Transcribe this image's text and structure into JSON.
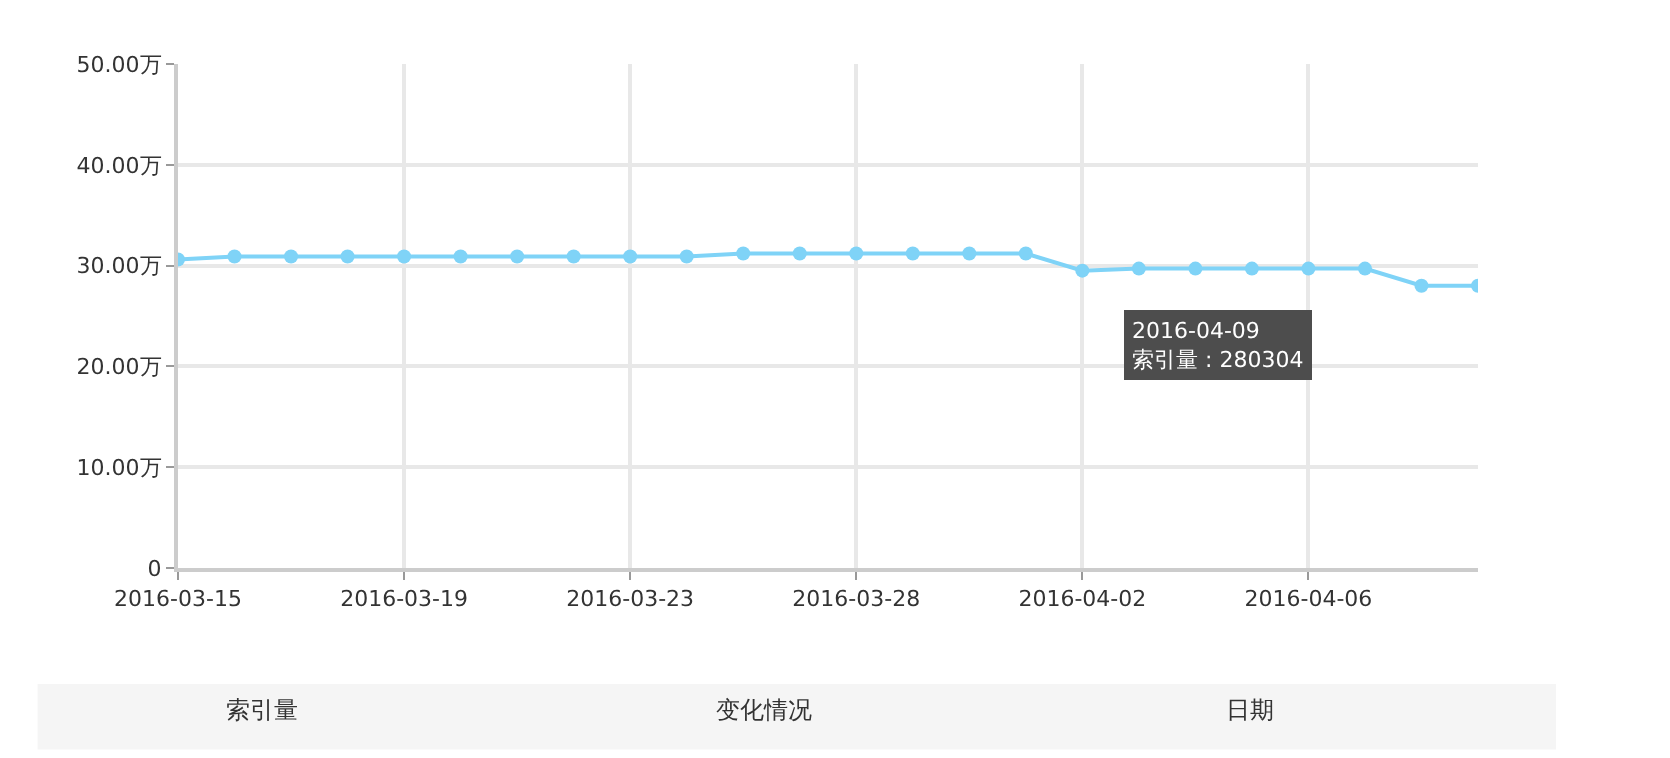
{
  "chart_data": {
    "type": "line",
    "categories": [
      "2016-03-15",
      null,
      null,
      null,
      "2016-03-19",
      null,
      null,
      null,
      "2016-03-23",
      null,
      null,
      null,
      "2016-03-28",
      null,
      null,
      null,
      "2016-04-02",
      null,
      null,
      null,
      "2016-04-06",
      null,
      null,
      null
    ],
    "series": [
      {
        "color": "#7fd3f7",
        "values": [
          30.6,
          30.9,
          30.9,
          30.9,
          30.9,
          30.9,
          30.9,
          30.9,
          30.9,
          30.9,
          31.2,
          31.2,
          31.2,
          31.2,
          31.2,
          31.2,
          29.5,
          29.7,
          29.7,
          29.7,
          29.7,
          29.7,
          28.0,
          28.0
        ]
      }
    ],
    "ylim": [
      0,
      50
    ],
    "yticks": [
      {
        "value": 0,
        "label": "0"
      },
      {
        "value": 10,
        "label": "10.00万"
      },
      {
        "value": 20,
        "label": "20.00万"
      },
      {
        "value": 30,
        "label": "30.00万"
      },
      {
        "value": 40,
        "label": "40.00万"
      },
      {
        "value": 50,
        "label": "50.00万"
      }
    ],
    "grid": true,
    "marker": "circle",
    "line_style": "solid",
    "annotations": [
      "2016-04-09\n索引量 : 280304",
      "索引量",
      "变化情况",
      "日期"
    ]
  }
}
